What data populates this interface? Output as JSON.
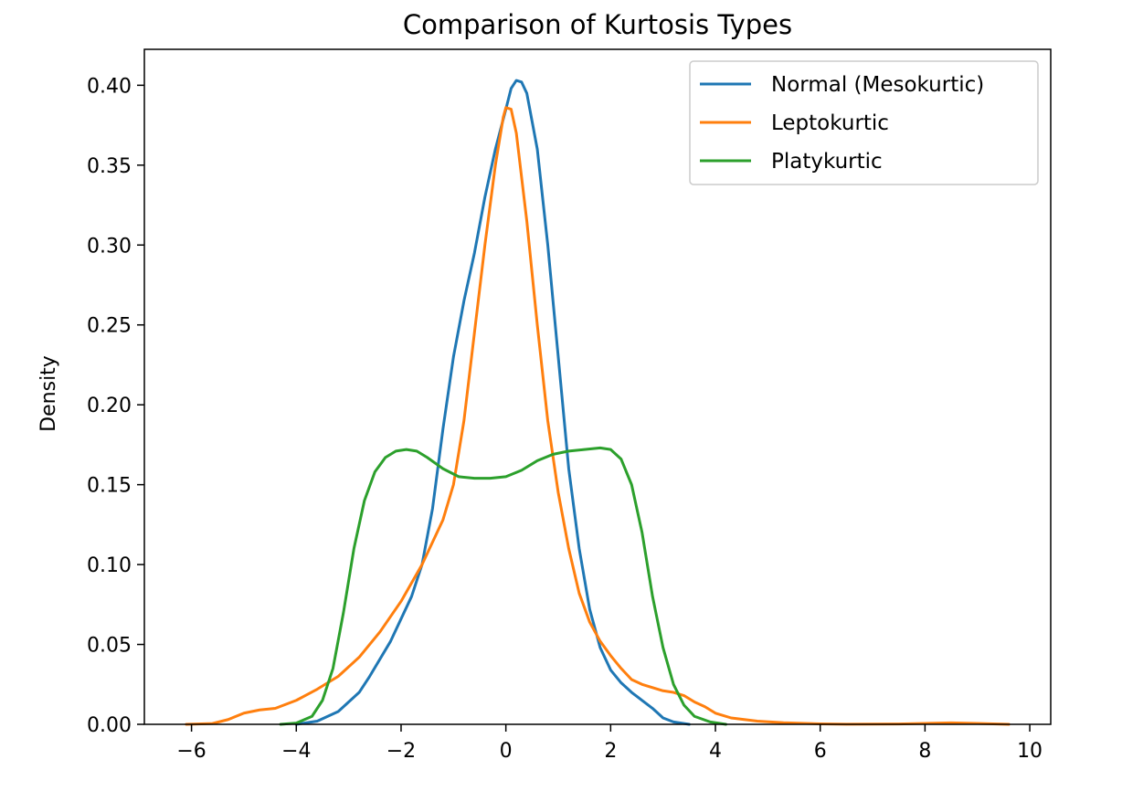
{
  "chart_data": {
    "type": "line",
    "title": "Comparison of Kurtosis Types",
    "xlabel": "",
    "ylabel": "Density",
    "xlim": [
      -6.9,
      10.4
    ],
    "ylim": [
      0,
      0.4225
    ],
    "xticks": [
      -6,
      -4,
      -2,
      0,
      2,
      4,
      6,
      8,
      10
    ],
    "xtick_labels": [
      "−6",
      "−4",
      "−2",
      "0",
      "2",
      "4",
      "6",
      "8",
      "10"
    ],
    "yticks": [
      0.0,
      0.05,
      0.1,
      0.15,
      0.2,
      0.25,
      0.3,
      0.35,
      0.4
    ],
    "ytick_labels": [
      "0.00",
      "0.05",
      "0.10",
      "0.15",
      "0.20",
      "0.25",
      "0.30",
      "0.35",
      "0.40"
    ],
    "grid": false,
    "legend_position": "top-right",
    "series": [
      {
        "name": "Normal (Mesokurtic)",
        "color": "#1f77b4",
        "points": [
          [
            -4.0,
            0.0
          ],
          [
            -3.6,
            0.002
          ],
          [
            -3.2,
            0.008
          ],
          [
            -2.8,
            0.02
          ],
          [
            -2.6,
            0.03
          ],
          [
            -2.2,
            0.052
          ],
          [
            -1.8,
            0.08
          ],
          [
            -1.6,
            0.1
          ],
          [
            -1.4,
            0.135
          ],
          [
            -1.2,
            0.185
          ],
          [
            -1.0,
            0.23
          ],
          [
            -0.8,
            0.265
          ],
          [
            -0.6,
            0.295
          ],
          [
            -0.4,
            0.33
          ],
          [
            -0.2,
            0.36
          ],
          [
            0.0,
            0.385
          ],
          [
            0.1,
            0.398
          ],
          [
            0.2,
            0.403
          ],
          [
            0.3,
            0.402
          ],
          [
            0.4,
            0.395
          ],
          [
            0.6,
            0.36
          ],
          [
            0.8,
            0.3
          ],
          [
            1.0,
            0.23
          ],
          [
            1.2,
            0.16
          ],
          [
            1.4,
            0.11
          ],
          [
            1.6,
            0.072
          ],
          [
            1.8,
            0.048
          ],
          [
            2.0,
            0.034
          ],
          [
            2.2,
            0.026
          ],
          [
            2.4,
            0.02
          ],
          [
            2.6,
            0.015
          ],
          [
            2.8,
            0.01
          ],
          [
            3.0,
            0.004
          ],
          [
            3.2,
            0.0015
          ],
          [
            3.5,
            0.0
          ]
        ]
      },
      {
        "name": "Leptokurtic",
        "color": "#ff7f0e",
        "points": [
          [
            -6.1,
            0.0
          ],
          [
            -5.6,
            0.0005
          ],
          [
            -5.3,
            0.003
          ],
          [
            -5.0,
            0.007
          ],
          [
            -4.7,
            0.009
          ],
          [
            -4.4,
            0.01
          ],
          [
            -4.0,
            0.015
          ],
          [
            -3.6,
            0.022
          ],
          [
            -3.2,
            0.03
          ],
          [
            -2.8,
            0.042
          ],
          [
            -2.4,
            0.058
          ],
          [
            -2.0,
            0.077
          ],
          [
            -1.6,
            0.1
          ],
          [
            -1.2,
            0.128
          ],
          [
            -1.0,
            0.15
          ],
          [
            -0.8,
            0.19
          ],
          [
            -0.6,
            0.245
          ],
          [
            -0.4,
            0.3
          ],
          [
            -0.2,
            0.35
          ],
          [
            -0.05,
            0.38
          ],
          [
            0.0,
            0.386
          ],
          [
            0.1,
            0.385
          ],
          [
            0.2,
            0.37
          ],
          [
            0.4,
            0.315
          ],
          [
            0.6,
            0.25
          ],
          [
            0.8,
            0.19
          ],
          [
            1.0,
            0.145
          ],
          [
            1.2,
            0.11
          ],
          [
            1.4,
            0.082
          ],
          [
            1.6,
            0.064
          ],
          [
            1.8,
            0.052
          ],
          [
            2.0,
            0.043
          ],
          [
            2.2,
            0.035
          ],
          [
            2.4,
            0.028
          ],
          [
            2.6,
            0.025
          ],
          [
            2.8,
            0.023
          ],
          [
            3.0,
            0.021
          ],
          [
            3.2,
            0.02
          ],
          [
            3.4,
            0.018
          ],
          [
            3.6,
            0.014
          ],
          [
            3.8,
            0.011
          ],
          [
            4.0,
            0.007
          ],
          [
            4.3,
            0.004
          ],
          [
            4.8,
            0.002
          ],
          [
            5.3,
            0.001
          ],
          [
            6.0,
            0.0003
          ],
          [
            6.5,
            0.0001
          ],
          [
            7.5,
            0.0002
          ],
          [
            8.0,
            0.0006
          ],
          [
            8.5,
            0.0009
          ],
          [
            9.0,
            0.0006
          ],
          [
            9.6,
            0.0
          ]
        ]
      },
      {
        "name": "Platykurtic",
        "color": "#2ca02c",
        "points": [
          [
            -4.3,
            0.0
          ],
          [
            -4.0,
            0.0008
          ],
          [
            -3.7,
            0.005
          ],
          [
            -3.5,
            0.015
          ],
          [
            -3.3,
            0.035
          ],
          [
            -3.1,
            0.07
          ],
          [
            -2.9,
            0.11
          ],
          [
            -2.7,
            0.14
          ],
          [
            -2.5,
            0.158
          ],
          [
            -2.3,
            0.167
          ],
          [
            -2.1,
            0.171
          ],
          [
            -1.9,
            0.172
          ],
          [
            -1.7,
            0.171
          ],
          [
            -1.5,
            0.167
          ],
          [
            -1.2,
            0.16
          ],
          [
            -0.9,
            0.155
          ],
          [
            -0.6,
            0.154
          ],
          [
            -0.3,
            0.154
          ],
          [
            0.0,
            0.155
          ],
          [
            0.3,
            0.159
          ],
          [
            0.6,
            0.165
          ],
          [
            0.9,
            0.169
          ],
          [
            1.2,
            0.171
          ],
          [
            1.5,
            0.172
          ],
          [
            1.8,
            0.173
          ],
          [
            2.0,
            0.172
          ],
          [
            2.2,
            0.166
          ],
          [
            2.4,
            0.15
          ],
          [
            2.6,
            0.12
          ],
          [
            2.8,
            0.08
          ],
          [
            3.0,
            0.048
          ],
          [
            3.2,
            0.025
          ],
          [
            3.4,
            0.012
          ],
          [
            3.6,
            0.005
          ],
          [
            3.9,
            0.0015
          ],
          [
            4.2,
            0.0
          ]
        ]
      }
    ]
  }
}
